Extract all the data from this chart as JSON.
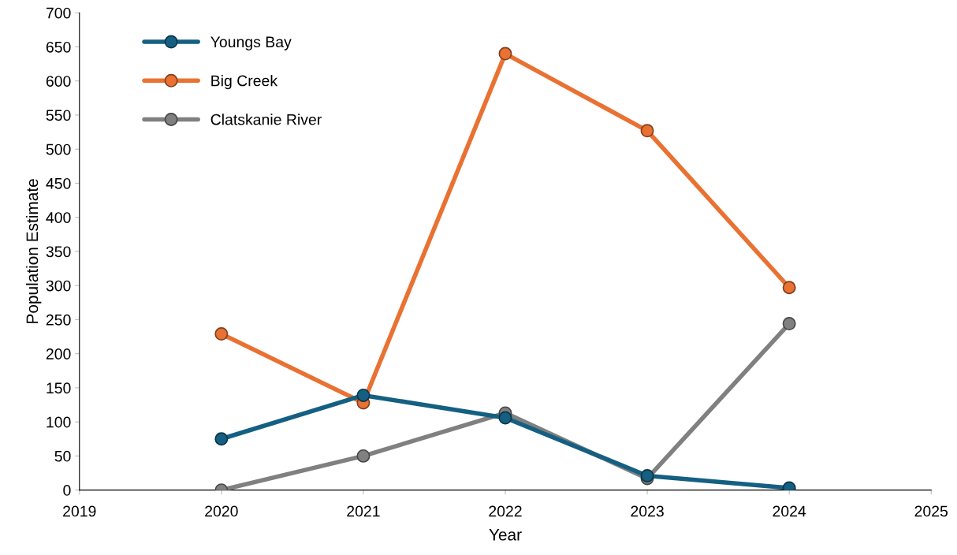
{
  "chart_data": {
    "type": "line",
    "xlabel": "Year",
    "ylabel": "Population Estimate",
    "x": [
      2020,
      2021,
      2022,
      2023,
      2024
    ],
    "series": [
      {
        "name": "Youngs Bay",
        "color": "#156082",
        "values": [
          75,
          139,
          106,
          21,
          3
        ]
      },
      {
        "name": "Big Creek",
        "color": "#e97132",
        "values": [
          229,
          128,
          640,
          527,
          297
        ]
      },
      {
        "name": "Clatskanie River",
        "color": "#808080",
        "values": [
          0,
          50,
          113,
          17,
          244
        ]
      }
    ],
    "xlim": [
      2019,
      2025
    ],
    "xticks": [
      2019,
      2020,
      2021,
      2022,
      2023,
      2024,
      2025
    ],
    "ylim": [
      0,
      700
    ],
    "yticks": [
      0,
      50,
      100,
      150,
      200,
      250,
      300,
      350,
      400,
      450,
      500,
      550,
      600,
      650,
      700
    ],
    "grid": false,
    "legend": "top left",
    "marker": "circle",
    "line_style": "solid"
  }
}
